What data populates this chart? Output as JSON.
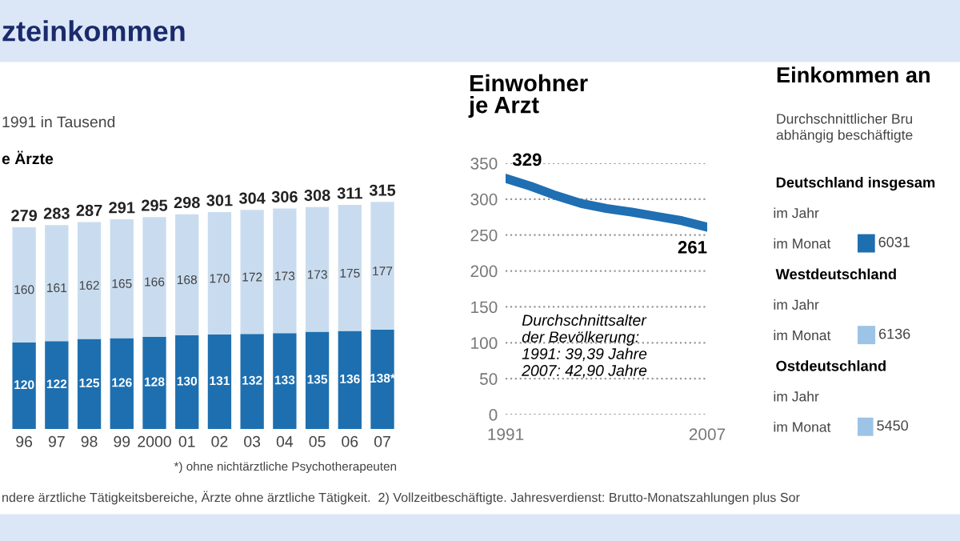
{
  "chart_data": [
    {
      "type": "bar",
      "stacked": true,
      "title": "zteinkommen",
      "subtitle": "1991 in Tausend",
      "categories": [
        "96",
        "97",
        "98",
        "99",
        "2000",
        "01",
        "02",
        "03",
        "04",
        "05",
        "06",
        "07"
      ],
      "series": [
        {
          "color": "#1d6fb0",
          "values": [
            120,
            122,
            125,
            126,
            128,
            130,
            131,
            132,
            133,
            135,
            136,
            138
          ],
          "value_labels": [
            "120",
            "122",
            "125",
            "126",
            "128",
            "130",
            "131",
            "132",
            "133",
            "135",
            "136",
            "138*"
          ]
        },
        {
          "color": "#c9dcef",
          "values": [
            160,
            161,
            162,
            165,
            166,
            168,
            170,
            172,
            173,
            173,
            175,
            177
          ]
        }
      ],
      "totals": [
        "279",
        "283",
        "287",
        "291",
        "295",
        "298",
        "301",
        "304",
        "306",
        "308",
        "311",
        "315"
      ],
      "data_labels": true,
      "annotations": [
        "e Ärzte",
        "*) ohne nichtärztliche Psychotherapeuten",
        "ndere ärztliche Tätigkeitsbereiche, Ärzte ohne ärztliche Tätigkeit.  2) Vollzeitbeschäftigte. Jahresverdienst: Brutto-Monatszahlungen plus Sor"
      ]
    },
    {
      "type": "line",
      "title": "Einwohner\nje Arzt",
      "x": [
        1991,
        1993,
        1995,
        1997,
        1999,
        2001,
        2003,
        2005,
        2007
      ],
      "series": [
        {
          "color": "#1f6fb2",
          "values": [
            329,
            318,
            305,
            294,
            287,
            282,
            276,
            270,
            261
          ],
          "value_labels": [
            "329",
            null,
            null,
            null,
            null,
            null,
            null,
            null,
            "261"
          ]
        }
      ],
      "xlim": [
        1991,
        2007
      ],
      "xticks": [
        1991,
        2007
      ],
      "ylim": [
        0,
        350
      ],
      "yticks": [
        0,
        50,
        100,
        150,
        200,
        250,
        300,
        350
      ],
      "grid": "y",
      "annotations": [
        "Durchschnittsalter\nder Bevölkerung:\n1991: 39,39 Jahre\n2007: 42,90 Jahre"
      ]
    },
    {
      "type": "bar",
      "orientation": "horizontal",
      "title": "Einkommen an",
      "subtitle": "Durchschnittlicher Bru\nabhängig beschäftigte",
      "categories": [
        "im Jahr",
        "im Monat",
        "im Jahr",
        "im Monat",
        "im Jahr",
        "im Monat"
      ],
      "values": [
        null,
        6031,
        null,
        6136,
        null,
        5450
      ],
      "colors": [
        "#1d6fb0",
        "#1d6fb0",
        "#9dc3e6",
        "#9dc3e6",
        "#9dc3e6",
        "#9dc3e6"
      ],
      "data_labels": true,
      "annotations": [
        "Deutschland insgesam",
        "Westdeutschland",
        "Ostdeutschland"
      ]
    }
  ]
}
